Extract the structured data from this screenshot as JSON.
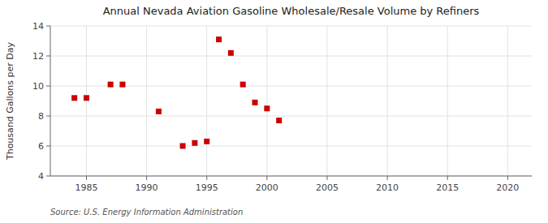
{
  "chart_data": {
    "type": "scatter",
    "title": "Annual Nevada Aviation Gasoline Wholesale/Resale Volume by Refiners",
    "y_label": "Thousand Gallons per Day",
    "source": "Source: U.S. Energy Information Administration",
    "x": [
      1984,
      1985,
      1987,
      1988,
      1991,
      1993,
      1994,
      1995,
      1996,
      1997,
      1998,
      1999,
      2000,
      2001
    ],
    "values": [
      9.2,
      9.2,
      10.1,
      10.1,
      8.3,
      6.0,
      6.2,
      6.3,
      13.1,
      12.2,
      10.1,
      8.9,
      8.5,
      7.7
    ],
    "color": "#cc0000",
    "marker": "square",
    "xlim": [
      1982,
      2022
    ],
    "ylim": [
      4,
      14
    ],
    "xticks": [
      1985,
      1990,
      1995,
      2000,
      2005,
      2010,
      2015,
      2020
    ],
    "yticks": [
      4,
      6,
      8,
      10,
      12,
      14
    ],
    "grid": true
  }
}
